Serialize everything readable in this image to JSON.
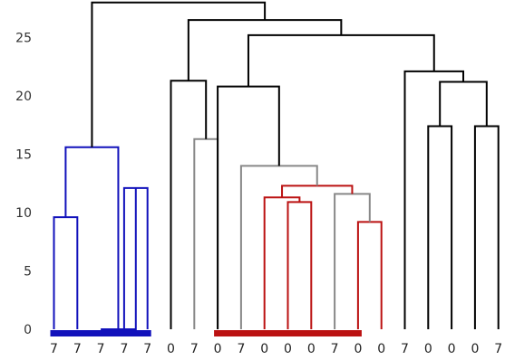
{
  "chart_data": {
    "type": "dendrogram",
    "title": "",
    "xlabel": "",
    "ylabel": "",
    "ylim": [
      0,
      28
    ],
    "y_ticks": [
      0,
      5,
      10,
      15,
      20,
      25
    ],
    "leaf_labels": [
      "7",
      "7",
      "7",
      "7",
      "7",
      "0",
      "7",
      "0",
      "7",
      "0",
      "0",
      "0",
      "7",
      "0",
      "0",
      "7",
      "0",
      "0",
      "0",
      "7"
    ],
    "colors": {
      "blue": "#1111bb",
      "red": "#bb1111",
      "gray": "#888888",
      "black": "#000000"
    },
    "clusters": [
      {
        "color": "blue",
        "leaves": [
          0,
          4
        ]
      },
      {
        "color": "red",
        "leaves": [
          7,
          13
        ]
      }
    ],
    "merges": [
      {
        "left": 0,
        "right": 1,
        "height": 9.6,
        "color": "blue"
      },
      {
        "left": 3,
        "right": 4,
        "height": 12.1,
        "color": "blue"
      },
      {
        "left": 2,
        "right": 21,
        "height": 0,
        "color": "blue"
      },
      {
        "left": 20,
        "right": 22,
        "height": 15.6,
        "color": "blue"
      },
      {
        "left": 6,
        "right": 7,
        "height": 16.3,
        "color": "gray"
      },
      {
        "left": 5,
        "right": 24,
        "height": 21.3,
        "color": "black"
      },
      {
        "left": 10,
        "right": 11,
        "height": 10.9,
        "color": "red"
      },
      {
        "left": 9,
        "right": 26,
        "height": 11.3,
        "color": "red"
      },
      {
        "left": 13,
        "right": 14,
        "height": 9.2,
        "color": "red"
      },
      {
        "left": 12,
        "right": 28,
        "height": 11.6,
        "color": "gray"
      },
      {
        "left": 27,
        "right": 29,
        "height": 12.3,
        "color": "red"
      },
      {
        "left": 8,
        "right": 30,
        "height": 14.0,
        "color": "gray"
      },
      {
        "left": 7,
        "right": 31,
        "height": 20.8,
        "color": "black"
      },
      {
        "left": 16,
        "right": 17,
        "height": 17.4,
        "color": "black"
      },
      {
        "left": 18,
        "right": 19,
        "height": 17.4,
        "color": "black"
      },
      {
        "left": 33,
        "right": 34,
        "height": 21.2,
        "color": "black"
      },
      {
        "left": 15,
        "right": 35,
        "height": 22.1,
        "color": "black"
      },
      {
        "left": 32,
        "right": 36,
        "height": 25.2,
        "color": "black"
      },
      {
        "left": 25,
        "right": 37,
        "height": 26.5,
        "color": "black"
      },
      {
        "left": 23,
        "right": 38,
        "height": 28.0,
        "color": "black"
      }
    ]
  }
}
